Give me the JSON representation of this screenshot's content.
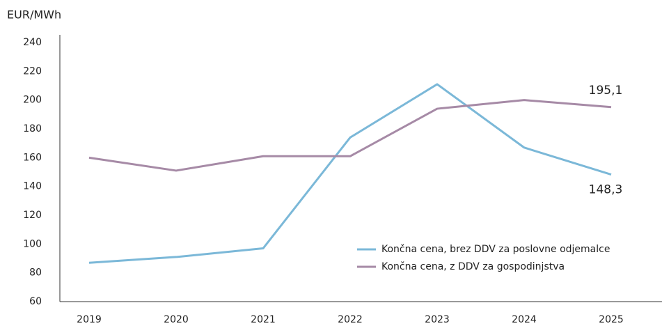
{
  "chart_data": {
    "type": "line",
    "y_axis_label": "EUR/MWh",
    "categories": [
      "2019",
      "2020",
      "2021",
      "2022",
      "2023",
      "2024",
      "2025"
    ],
    "series": [
      {
        "name": "Končna cena, brez DDV za poslovne odjemalce",
        "color": "#7bb8d8",
        "values": [
          87,
          91,
          97,
          174,
          211,
          167,
          148.3
        ],
        "value_labels": [
          null,
          null,
          null,
          null,
          null,
          null,
          "148,3"
        ]
      },
      {
        "name": "Končna cena, z DDV za gospodinjstva",
        "color": "#a68aa6",
        "values": [
          160,
          151,
          161,
          161,
          194,
          200,
          195.1
        ],
        "value_labels": [
          null,
          null,
          null,
          null,
          null,
          null,
          "195,1"
        ]
      }
    ],
    "ylim": [
      60,
      240
    ],
    "yticks": [
      60,
      80,
      100,
      120,
      140,
      160,
      180,
      200,
      220,
      240
    ],
    "grid": false,
    "legend": "lower right"
  }
}
